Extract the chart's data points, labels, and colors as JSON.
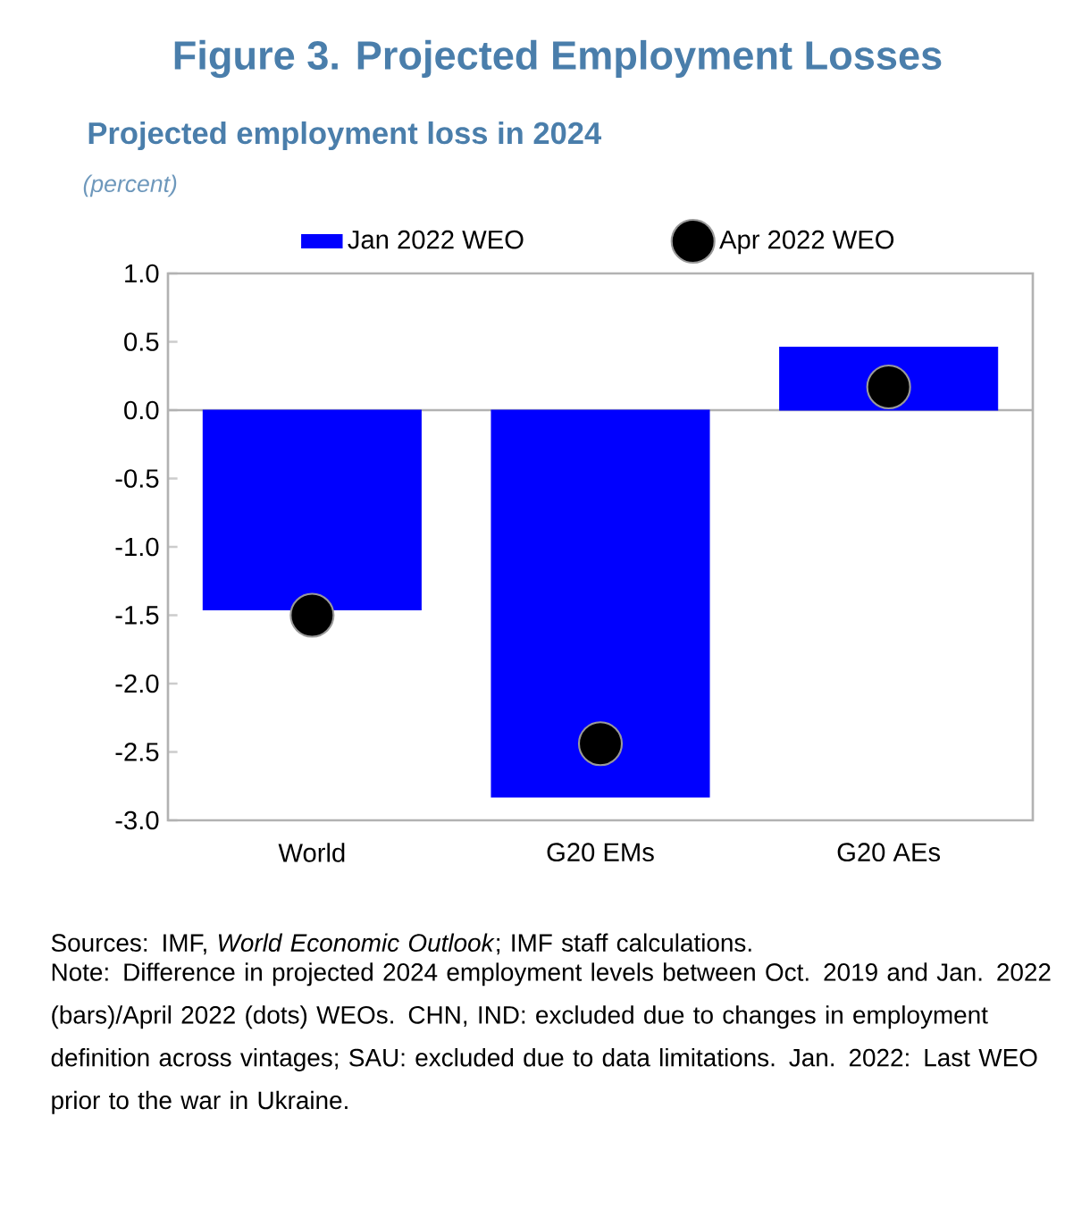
{
  "chart_data": {
    "type": "bar",
    "title": "Figure 3. Projected Employment Losses",
    "subtitle": "Projected employment loss in 2024",
    "categories": [
      "World",
      "G20 EMs",
      "G20 AEs"
    ],
    "series": [
      {
        "name": "Jan 2022 WEO",
        "color": "#0000ff",
        "values": [
          -1.46,
          -2.83,
          0.46
        ]
      },
      {
        "name": "Apr 2022 WEO",
        "type": "scatter",
        "marker": "circle",
        "color": "#000000",
        "x": [
          "World",
          "G20 EMs",
          "G20 AEs"
        ],
        "values": [
          -1.5,
          -2.44,
          0.17
        ]
      }
    ],
    "ylim": [
      -3,
      1
    ],
    "yticks": [
      {
        "value": -3,
        "label": "-3.0"
      },
      {
        "value": -2.5,
        "label": "-2.5"
      },
      {
        "value": -2,
        "label": "-2.0"
      },
      {
        "value": -1.5,
        "label": "-1.5"
      },
      {
        "value": -1,
        "label": "-1.0"
      },
      {
        "value": -0.5,
        "label": "-0.5"
      },
      {
        "value": 0,
        "label": "0.0"
      },
      {
        "value": 0.5,
        "label": "0.5"
      },
      {
        "value": 1,
        "label": "1.0"
      }
    ],
    "legend": "top",
    "annotations": [
      "(percent)",
      "Sources: IMF, *World Economic Outlook*; IMF staff calculations.",
      "Note: Difference in projected 2024 employment levels between Oct. 2019 and Jan. 2022 (bars)/April 2022 (dots) WEOs. CHN, IND: excluded due to changes in employment definition across vintages; SAU: excluded due to data limitations. Jan. 2022: Last WEO prior to the war in Ukraine."
    ]
  }
}
